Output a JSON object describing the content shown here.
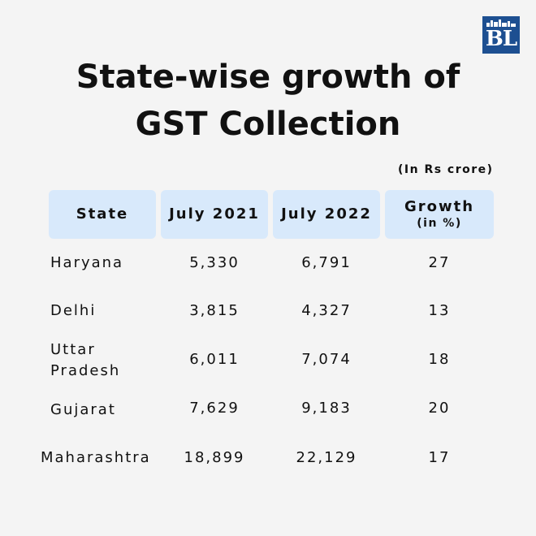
{
  "logo": {
    "text": "BL"
  },
  "chart_data": {
    "type": "table",
    "title": "State-wise growth of GST Collection",
    "title_lines": [
      "State-wise growth of",
      "GST Collection"
    ],
    "unit": "(In Rs crore)",
    "columns": [
      {
        "label": "State",
        "sub": ""
      },
      {
        "label": "July 2021",
        "sub": ""
      },
      {
        "label": "July 2022",
        "sub": ""
      },
      {
        "label": "Growth",
        "sub": "(in %)"
      }
    ],
    "rows": [
      {
        "state": "Haryana",
        "state_lines": [
          "Haryana"
        ],
        "july_2021": "5,330",
        "july_2022": "6,791",
        "growth": "27"
      },
      {
        "state": "Delhi",
        "state_lines": [
          "Delhi"
        ],
        "july_2021": "3,815",
        "july_2022": "4,327",
        "growth": "13"
      },
      {
        "state": "Uttar Pradesh",
        "state_lines": [
          "Uttar",
          "Pradesh"
        ],
        "july_2021": "6,011",
        "july_2022": "7,074",
        "growth": "18"
      },
      {
        "state": "Gujarat",
        "state_lines": [
          "Gujarat"
        ],
        "july_2021": "7,629",
        "july_2022": "9,183",
        "growth": "20"
      },
      {
        "state": "Maharashtra",
        "state_lines": [
          "Maharashtra"
        ],
        "july_2021": "18,899",
        "july_2022": "22,129",
        "growth": "17"
      }
    ]
  }
}
